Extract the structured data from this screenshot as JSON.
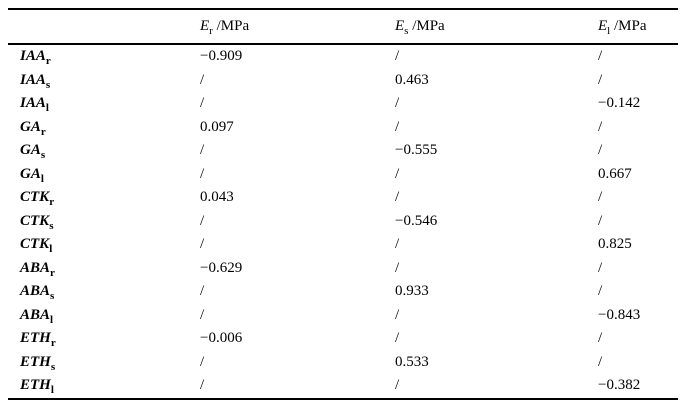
{
  "table": {
    "columns": [
      {
        "base": "E",
        "sub": "r",
        "unit": " /MPa"
      },
      {
        "base": "E",
        "sub": "s",
        "unit": " /MPa"
      },
      {
        "base": "E",
        "sub": "l",
        "unit": " /MPa"
      }
    ],
    "rows": [
      {
        "base": "IAA",
        "sub": "r",
        "values": [
          "−0.909",
          "/",
          "/"
        ]
      },
      {
        "base": "IAA",
        "sub": "s",
        "values": [
          "/",
          "0.463",
          "/"
        ]
      },
      {
        "base": "IAA",
        "sub": "l",
        "values": [
          "/",
          "/",
          "−0.142"
        ]
      },
      {
        "base": "GA",
        "sub": "r",
        "values": [
          "0.097",
          "/",
          "/"
        ]
      },
      {
        "base": "GA",
        "sub": "s",
        "values": [
          "/",
          "−0.555",
          "/"
        ]
      },
      {
        "base": "GA",
        "sub": "l",
        "values": [
          "/",
          "/",
          "0.667"
        ]
      },
      {
        "base": "CTK",
        "sub": "r",
        "values": [
          "0.043",
          "/",
          "/"
        ]
      },
      {
        "base": "CTK",
        "sub": "s",
        "values": [
          "/",
          "−0.546",
          "/"
        ]
      },
      {
        "base": "CTK",
        "sub": "l",
        "values": [
          "/",
          "/",
          "0.825"
        ]
      },
      {
        "base": "ABA",
        "sub": "r",
        "values": [
          "−0.629",
          "/",
          "/"
        ]
      },
      {
        "base": "ABA",
        "sub": "s",
        "values": [
          "/",
          "0.933",
          "/"
        ]
      },
      {
        "base": "ABA",
        "sub": "l",
        "values": [
          "/",
          "/",
          "−0.843"
        ]
      },
      {
        "base": "ETH",
        "sub": "r",
        "values": [
          "−0.006",
          "/",
          "/"
        ]
      },
      {
        "base": "ETH",
        "sub": "s",
        "values": [
          "/",
          "0.533",
          "/"
        ]
      },
      {
        "base": "ETH",
        "sub": "l",
        "values": [
          "/",
          "/",
          "−0.382"
        ]
      }
    ]
  },
  "colors": {
    "text": "#000000",
    "background": "#ffffff",
    "rule": "#000000"
  }
}
